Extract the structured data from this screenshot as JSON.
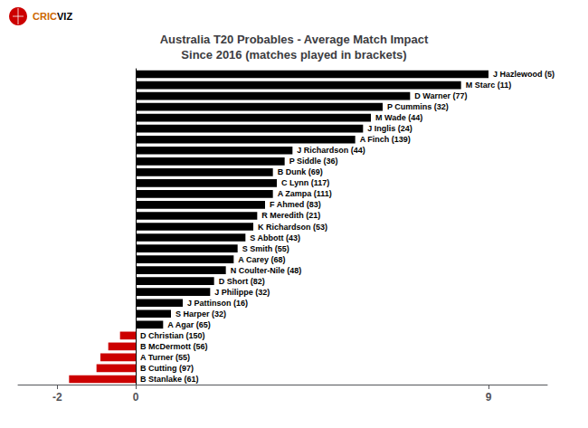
{
  "chart_data": {
    "type": "bar",
    "orientation": "horizontal",
    "title": "Australia T20 Probables - Average Match Impact\nSince 2016 (matches played in brackets)",
    "categories": [
      "J Hazlewood (5)",
      "M Starc (11)",
      "D Warner (77)",
      "P Cummins (32)",
      "M Wade (44)",
      "J Inglis (24)",
      "A Finch (139)",
      "J Richardson (44)",
      "P Siddle (36)",
      "B Dunk (69)",
      "C Lynn (117)",
      "A Zampa (111)",
      "F Ahmed (83)",
      "R Meredith (21)",
      "K Richardson (53)",
      "S Abbott (43)",
      "S Smith (55)",
      "A Carey (68)",
      "N Coulter-Nile (48)",
      "D Short (82)",
      "J Philippe (32)",
      "J Pattinson (16)",
      "S Harper (32)",
      "A Agar (65)",
      "D Christian (150)",
      "B McDermott (56)",
      "A Turner (55)",
      "B Cutting (97)",
      "B Stanlake (61)"
    ],
    "values": [
      9.0,
      8.3,
      7.0,
      6.3,
      6.0,
      5.8,
      5.6,
      4.0,
      3.8,
      3.5,
      3.6,
      3.5,
      3.3,
      3.1,
      3.0,
      2.8,
      2.6,
      2.5,
      2.3,
      2.0,
      1.9,
      1.2,
      0.9,
      0.7,
      -0.4,
      -0.7,
      -0.9,
      -1.0,
      -1.7
    ],
    "colors": [
      "#000000",
      "#000000",
      "#000000",
      "#000000",
      "#000000",
      "#000000",
      "#000000",
      "#000000",
      "#000000",
      "#000000",
      "#000000",
      "#000000",
      "#000000",
      "#000000",
      "#000000",
      "#000000",
      "#000000",
      "#000000",
      "#000000",
      "#000000",
      "#000000",
      "#000000",
      "#000000",
      "#000000",
      "#cc0000",
      "#cc0000",
      "#cc0000",
      "#cc0000",
      "#cc0000"
    ],
    "xlim": [
      -3.0,
      10.5
    ],
    "xticks": [
      -2,
      0,
      9
    ],
    "grid": false,
    "tick_labels": "x",
    "annotations": [
      {
        "text": "CRIC",
        "color": "#cc6600"
      },
      {
        "text": "VIZ",
        "color": "#000000"
      }
    ]
  }
}
